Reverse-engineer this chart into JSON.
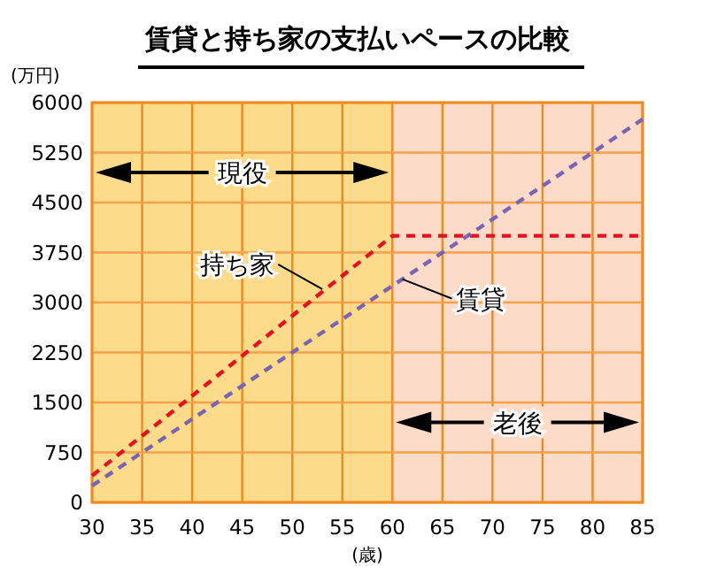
{
  "chart_data": {
    "type": "line",
    "title": "賃貸と持ち家の支払いペースの比較",
    "xlabel": "(歳)",
    "ylabel": "(万円)",
    "xlim": [
      30,
      85
    ],
    "xticks": [
      30,
      35,
      40,
      45,
      50,
      55,
      60,
      65,
      70,
      75,
      80,
      85
    ],
    "ylim": [
      0,
      6000
    ],
    "yticks": [
      0,
      750,
      1500,
      2250,
      3000,
      3750,
      4500,
      5250,
      6000
    ],
    "grid": true,
    "legend": false,
    "marker": "none",
    "line_style": "dashed",
    "series": [
      {
        "color": "#e8101e",
        "x": [
          30,
          60,
          85
        ],
        "values": [
          400,
          4000,
          4000
        ]
      },
      {
        "color": "#7a64b4",
        "x": [
          30,
          85
        ],
        "values": [
          250,
          5750
        ]
      }
    ],
    "annotations": [
      {
        "text": "持ち家",
        "x": 53,
        "y": 3200
      },
      {
        "text": "賃貸",
        "x": 61,
        "y": 3350
      }
    ],
    "bands": [
      {
        "axis": "x",
        "from": 30,
        "to": 60,
        "label": "現役",
        "color": "#fcdc8a"
      },
      {
        "axis": "x",
        "from": 60,
        "to": 85,
        "label": "老後",
        "color": "#fcdcc8"
      }
    ]
  }
}
